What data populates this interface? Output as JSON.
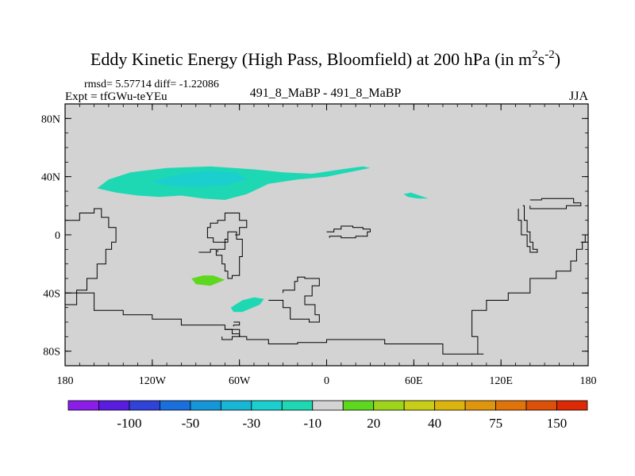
{
  "chart_data": {
    "type": "heatmap",
    "title": "Eddy Kinetic Energy (High Pass, Bloomfield) at 200 hPa (in m",
    "title_units": {
      "sup1": "2",
      "mid": "s",
      "sup2": "-2",
      "end": ")"
    },
    "stats_text": "rmsd= 5.57714 diff= -1.22086",
    "expt_text": "Expt = tfGWu-teYEu",
    "subtitle": "491_8_MaBP - 491_8_MaBP",
    "season": "JJA",
    "xlim": [
      -180,
      180
    ],
    "ylim": [
      -90,
      90
    ],
    "x_ticks": [
      {
        "value": -180,
        "label": "180"
      },
      {
        "value": -120,
        "label": "120W"
      },
      {
        "value": -60,
        "label": "60W"
      },
      {
        "value": 0,
        "label": "0"
      },
      {
        "value": 60,
        "label": "60E"
      },
      {
        "value": 120,
        "label": "120E"
      },
      {
        "value": 180,
        "label": "180"
      }
    ],
    "y_ticks": [
      {
        "value": 80,
        "label": "80N"
      },
      {
        "value": 40,
        "label": "40N"
      },
      {
        "value": 0,
        "label": "0"
      },
      {
        "value": -40,
        "label": "40S"
      },
      {
        "value": -80,
        "label": "80S"
      }
    ],
    "background_color": "#d3d3d3",
    "colorbar": {
      "colors": [
        "#8a1ee8",
        "#5a1de0",
        "#2f43d8",
        "#1a6fdc",
        "#1496d8",
        "#17b6d4",
        "#1bcfcf",
        "#1ed8b4",
        "#d3d3d3",
        "#5ed81e",
        "#9ed41a",
        "#c8ce16",
        "#dcb40e",
        "#e0960c",
        "#e0740a",
        "#dc5008",
        "#dc2a06"
      ],
      "labels": [
        {
          "edge": 2,
          "text": "-100"
        },
        {
          "edge": 4,
          "text": "-50"
        },
        {
          "edge": 6,
          "text": "-30"
        },
        {
          "edge": 8,
          "text": "-10"
        },
        {
          "edge": 10,
          "text": "20"
        },
        {
          "edge": 12,
          "text": "40"
        },
        {
          "edge": 14,
          "text": "75"
        },
        {
          "edge": 16,
          "text": "150"
        }
      ]
    },
    "regions": [
      {
        "name": "north-pacific-jet-outer",
        "color": "#1ed8b4",
        "points": [
          [
            -158,
            32
          ],
          [
            -150,
            38
          ],
          [
            -135,
            43
          ],
          [
            -110,
            46
          ],
          [
            -80,
            47
          ],
          [
            -50,
            45
          ],
          [
            -30,
            43
          ],
          [
            -10,
            42
          ],
          [
            10,
            45
          ],
          [
            25,
            47
          ],
          [
            30,
            46
          ],
          [
            15,
            43
          ],
          [
            0,
            40
          ],
          [
            -20,
            38
          ],
          [
            -40,
            35
          ],
          [
            -55,
            28
          ],
          [
            -70,
            24
          ],
          [
            -85,
            25
          ],
          [
            -100,
            27
          ],
          [
            -115,
            26
          ],
          [
            -130,
            27
          ],
          [
            -145,
            29
          ]
        ]
      },
      {
        "name": "north-pacific-jet-core",
        "color": "#1bcfcf",
        "points": [
          [
            -120,
            37
          ],
          [
            -100,
            42
          ],
          [
            -80,
            44
          ],
          [
            -62,
            43
          ],
          [
            -55,
            38
          ],
          [
            -70,
            34
          ],
          [
            -90,
            33
          ],
          [
            -110,
            34
          ]
        ]
      },
      {
        "name": "arabian-sea-patch",
        "color": "#1ed8b4",
        "points": [
          [
            53,
            28
          ],
          [
            58,
            29
          ],
          [
            64,
            27
          ],
          [
            70,
            25
          ],
          [
            63,
            25
          ],
          [
            56,
            26
          ]
        ]
      },
      {
        "name": "south-america-positive-patch",
        "color": "#5ed81e",
        "points": [
          [
            -93,
            -30
          ],
          [
            -85,
            -28
          ],
          [
            -78,
            -28
          ],
          [
            -70,
            -31
          ],
          [
            -80,
            -35
          ],
          [
            -90,
            -34
          ]
        ]
      },
      {
        "name": "south-atlantic-patch",
        "color": "#1ed8b4",
        "points": [
          [
            -66,
            -50
          ],
          [
            -58,
            -45
          ],
          [
            -50,
            -43
          ],
          [
            -43,
            -44
          ],
          [
            -46,
            -48
          ],
          [
            -58,
            -53
          ],
          [
            -64,
            -53
          ]
        ]
      }
    ],
    "coastlines": [
      [
        [
          -180,
          -48
        ],
        [
          -175,
          -48
        ],
        [
          -172,
          -38
        ],
        [
          -165,
          -30
        ],
        [
          -158,
          -20
        ],
        [
          -152,
          -10
        ],
        [
          -148,
          -5
        ],
        [
          -145,
          5
        ],
        [
          -150,
          12
        ],
        [
          -155,
          18
        ],
        [
          -160,
          15
        ],
        [
          -170,
          10
        ],
        [
          -180,
          12
        ]
      ],
      [
        [
          -180,
          -40
        ],
        [
          -160,
          -52
        ],
        [
          -140,
          -55
        ],
        [
          -120,
          -58
        ],
        [
          -100,
          -62
        ],
        [
          -80,
          -62
        ],
        [
          -70,
          -65
        ],
        [
          -60,
          -70
        ],
        [
          -55,
          -72
        ],
        [
          -40,
          -75
        ],
        [
          -20,
          -74
        ],
        [
          0,
          -72
        ],
        [
          40,
          -75
        ],
        [
          80,
          -82
        ],
        [
          108,
          -82
        ],
        [
          104,
          -70
        ],
        [
          100,
          -52
        ],
        [
          110,
          -45
        ],
        [
          125,
          -40
        ],
        [
          140,
          -30
        ],
        [
          158,
          -25
        ],
        [
          168,
          -18
        ],
        [
          172,
          -10
        ],
        [
          176,
          -5
        ],
        [
          180,
          0
        ]
      ],
      [
        [
          -88,
          -12
        ],
        [
          -80,
          -10
        ],
        [
          -76,
          -14
        ],
        [
          -72,
          -20
        ],
        [
          -70,
          -25
        ],
        [
          -68,
          -30
        ],
        [
          -65,
          -28
        ],
        [
          -60,
          -15
        ],
        [
          -58,
          -3
        ],
        [
          -62,
          2
        ],
        [
          -68,
          -3
        ],
        [
          -70,
          -10
        ],
        [
          -75,
          -12
        ]
      ],
      [
        [
          -63,
          0
        ],
        [
          -60,
          5
        ],
        [
          -55,
          10
        ],
        [
          -60,
          15
        ],
        [
          -70,
          10
        ],
        [
          -75,
          8
        ],
        [
          -80,
          5
        ],
        [
          -82,
          -2
        ],
        [
          -78,
          -5
        ],
        [
          -72,
          -5
        ],
        [
          -68,
          -2
        ]
      ],
      [
        [
          -40,
          -45
        ],
        [
          -30,
          -50
        ],
        [
          -25,
          -58
        ],
        [
          -12,
          -60
        ],
        [
          -5,
          -55
        ],
        [
          -8,
          -48
        ],
        [
          -15,
          -42
        ],
        [
          -10,
          -35
        ],
        [
          -5,
          -30
        ],
        [
          -15,
          -29
        ],
        [
          -20,
          -32
        ],
        [
          -22,
          -38
        ],
        [
          -30,
          -40
        ]
      ],
      [
        [
          0,
          2
        ],
        [
          5,
          4
        ],
        [
          10,
          6
        ],
        [
          18,
          5
        ],
        [
          25,
          4
        ],
        [
          30,
          2
        ],
        [
          28,
          -1
        ],
        [
          20,
          -2
        ],
        [
          10,
          -1
        ],
        [
          2,
          -2
        ]
      ],
      [
        [
          -70,
          -65
        ],
        [
          -65,
          -68
        ],
        [
          -60,
          -70
        ],
        [
          -65,
          -72
        ],
        [
          -72,
          -70
        ]
      ],
      [
        [
          -64,
          -60
        ],
        [
          -60,
          -62
        ],
        [
          -64,
          -63
        ]
      ],
      [
        [
          140,
          24
        ],
        [
          148,
          25
        ],
        [
          165,
          25
        ],
        [
          170,
          22
        ],
        [
          175,
          20
        ],
        [
          165,
          18
        ],
        [
          150,
          18
        ],
        [
          140,
          20
        ]
      ],
      [
        [
          135,
          20
        ],
        [
          136,
          10
        ],
        [
          138,
          2
        ],
        [
          140,
          -5
        ],
        [
          142,
          -10
        ],
        [
          145,
          -12
        ],
        [
          140,
          -8
        ],
        [
          138,
          0
        ],
        [
          134,
          10
        ],
        [
          132,
          18
        ]
      ],
      [
        [
          175,
          -5
        ],
        [
          178,
          0
        ],
        [
          180,
          2
        ]
      ]
    ]
  }
}
